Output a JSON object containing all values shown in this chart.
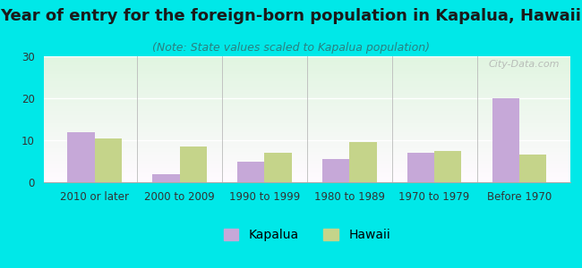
{
  "title": "Year of entry for the foreign-born population in Kapalua, Hawaii",
  "subtitle": "(Note: State values scaled to Kapalua population)",
  "categories": [
    "2010 or later",
    "2000 to 2009",
    "1990 to 1999",
    "1980 to 1989",
    "1970 to 1979",
    "Before 1970"
  ],
  "kapalua_values": [
    12,
    2,
    5,
    5.5,
    7,
    20
  ],
  "hawaii_values": [
    10.5,
    8.5,
    7,
    9.5,
    7.5,
    6.5
  ],
  "kapalua_color": "#c6a8d8",
  "hawaii_color": "#c5d48a",
  "ylim": [
    0,
    30
  ],
  "yticks": [
    0,
    10,
    20,
    30
  ],
  "background_color": "#00e8e8",
  "bar_width": 0.32,
  "title_fontsize": 13,
  "subtitle_fontsize": 9,
  "tick_fontsize": 8.5,
  "legend_fontsize": 10,
  "watermark": "City-Data.com"
}
